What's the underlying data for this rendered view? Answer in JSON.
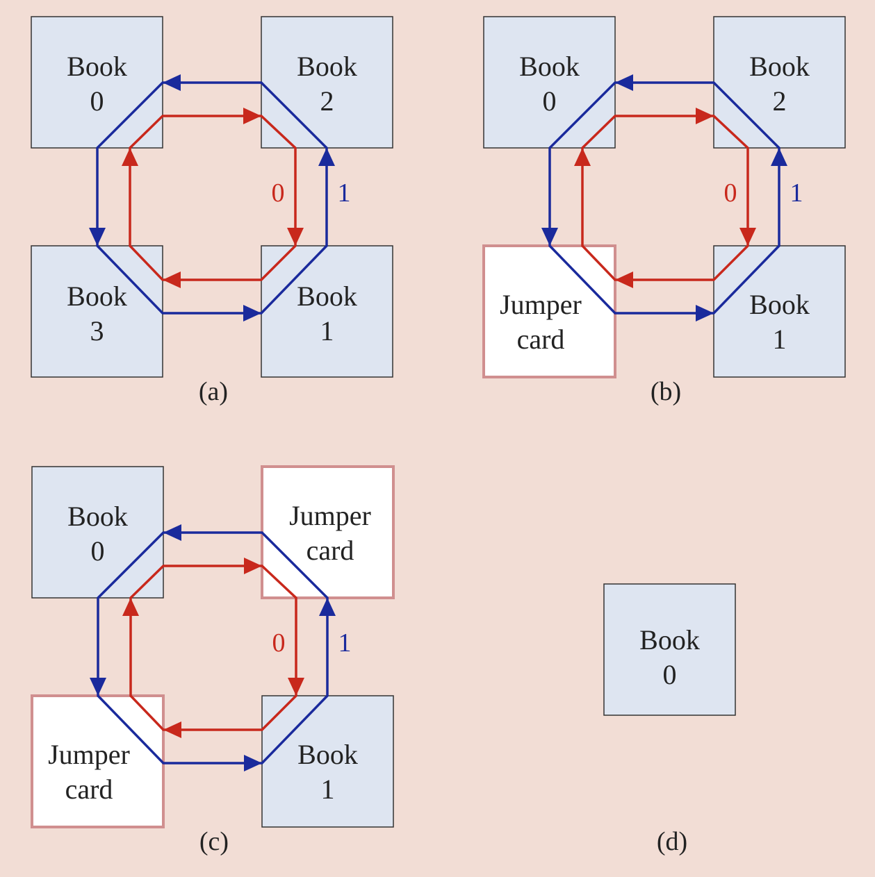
{
  "colors": {
    "background": "#f2ddd5",
    "book_fill": "#dee5f1",
    "book_stroke": "#333333",
    "jumper_fill": "#ffffff",
    "jumper_stroke": "#d08f8f",
    "ring_0": "#c8281c",
    "ring_1": "#1a2a9c"
  },
  "ring_labels": {
    "ring_0": "0",
    "ring_1": "1"
  },
  "panels": [
    {
      "caption": "(a)",
      "slots": {
        "top_left": {
          "kind": "book",
          "line1": "Book",
          "line2": "0"
        },
        "top_right": {
          "kind": "book",
          "line1": "Book",
          "line2": "2"
        },
        "bottom_left": {
          "kind": "book",
          "line1": "Book",
          "line2": "3"
        },
        "bottom_right": {
          "kind": "book",
          "line1": "Book",
          "line2": "1"
        }
      }
    },
    {
      "caption": "(b)",
      "slots": {
        "top_left": {
          "kind": "book",
          "line1": "Book",
          "line2": "0"
        },
        "top_right": {
          "kind": "book",
          "line1": "Book",
          "line2": "2"
        },
        "bottom_left": {
          "kind": "jumper",
          "line1": "Jumper",
          "line2": "card"
        },
        "bottom_right": {
          "kind": "book",
          "line1": "Book",
          "line2": "1"
        }
      }
    },
    {
      "caption": "(c)",
      "slots": {
        "top_left": {
          "kind": "book",
          "line1": "Book",
          "line2": "0"
        },
        "top_right": {
          "kind": "jumper",
          "line1": "Jumper",
          "line2": "card"
        },
        "bottom_left": {
          "kind": "jumper",
          "line1": "Jumper",
          "line2": "card"
        },
        "bottom_right": {
          "kind": "book",
          "line1": "Book",
          "line2": "1"
        }
      }
    },
    {
      "caption": "(d)",
      "single": {
        "kind": "book",
        "line1": "Book",
        "line2": "0"
      }
    }
  ]
}
